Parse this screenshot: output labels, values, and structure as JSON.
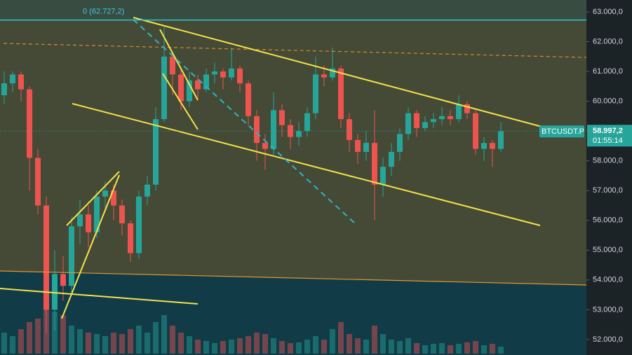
{
  "chart_data": {
    "type": "candlestick",
    "ylim": [
      51480,
      63400
    ],
    "yticks": [
      {
        "value": 52000,
        "label": "52.000,0"
      },
      {
        "value": 53000,
        "label": "53.000,0"
      },
      {
        "value": 54000,
        "label": "54.000,0"
      },
      {
        "value": 55000,
        "label": "55.000,0"
      },
      {
        "value": 56000,
        "label": "56.000,0"
      },
      {
        "value": 57000,
        "label": "57.000,0"
      },
      {
        "value": 58000,
        "label": "58.000,0"
      },
      {
        "value": 59000,
        "label": "59.000,0"
      },
      {
        "value": 60000,
        "label": "60.000,0"
      },
      {
        "value": 61000,
        "label": "61.000,0"
      },
      {
        "value": 62000,
        "label": "62.000,0"
      },
      {
        "value": 63000,
        "label": "63.000,0"
      }
    ],
    "symbol": "BTCUSDT.P",
    "last_price": {
      "value": 58997.2,
      "label": "58.997,2"
    },
    "countdown": "01:55:14",
    "fib_level": {
      "value": 62727.2,
      "label": "0 (62.727,2)"
    },
    "up_color": "#26a69a",
    "down_color": "#ef5350",
    "open": [
      60200,
      60600,
      60900,
      60400,
      58100,
      56500,
      53000,
      54200,
      53800,
      55800,
      56200,
      55600,
      56800,
      57000,
      56500,
      55900,
      54900,
      56800,
      57200,
      59400,
      61500,
      60900,
      60000,
      60700,
      60400,
      60900,
      61000,
      60800,
      61100,
      60600,
      59500,
      58600,
      58400,
      59700,
      59200,
      58800,
      59000,
      59600,
      60900,
      60800,
      61100,
      59400,
      58700,
      58300,
      58600,
      57200,
      57800,
      58300,
      58900,
      59600,
      59100,
      59300,
      59400,
      59500,
      59400,
      59900,
      59600,
      58400,
      58600,
      58400
    ],
    "high": [
      61000,
      61000,
      61000,
      60500,
      58400,
      56800,
      55000,
      54800,
      56100,
      56700,
      56500,
      57000,
      57300,
      57200,
      56700,
      56000,
      57000,
      57500,
      59800,
      62500,
      61600,
      61100,
      61000,
      60900,
      61100,
      61300,
      61100,
      61800,
      61200,
      60700,
      59700,
      58900,
      60300,
      59900,
      59400,
      59300,
      59800,
      61500,
      61200,
      61800,
      61200,
      59600,
      58900,
      59000,
      59700,
      58100,
      58600,
      59100,
      59800,
      59700,
      59500,
      59600,
      59800,
      59700,
      60200,
      60000,
      59700,
      58800,
      58700,
      59300
    ],
    "low": [
      59900,
      60300,
      60000,
      57000,
      56200,
      52200,
      52300,
      53300,
      53600,
      55200,
      55100,
      55400,
      56400,
      56000,
      55500,
      54600,
      54700,
      56500,
      57000,
      59300,
      60200,
      59700,
      59800,
      60100,
      60300,
      60600,
      60400,
      60700,
      60300,
      59200,
      58000,
      57700,
      58200,
      58800,
      58400,
      58500,
      58800,
      59400,
      60500,
      60700,
      59100,
      58300,
      57900,
      58000,
      56000,
      56800,
      57500,
      58000,
      58700,
      58800,
      59000,
      59100,
      59200,
      59200,
      59300,
      59400,
      58200,
      58000,
      57800,
      58300
    ],
    "close": [
      60600,
      60900,
      60400,
      58100,
      56500,
      53000,
      54200,
      53800,
      55800,
      56200,
      55600,
      56800,
      57000,
      56500,
      55900,
      54900,
      56800,
      57200,
      59400,
      61500,
      60900,
      60000,
      60700,
      60400,
      60900,
      61000,
      60800,
      61100,
      60600,
      59500,
      58600,
      58400,
      59700,
      59200,
      58800,
      59000,
      59600,
      60900,
      60800,
      61100,
      59400,
      58700,
      58300,
      58600,
      57200,
      57800,
      58300,
      58900,
      59600,
      59100,
      59300,
      59400,
      59500,
      59400,
      59900,
      59600,
      58400,
      58600,
      58400,
      58997.2
    ],
    "volume": [
      30,
      25,
      35,
      45,
      50,
      70,
      60,
      55,
      40,
      35,
      30,
      28,
      25,
      30,
      28,
      35,
      40,
      30,
      45,
      55,
      40,
      30,
      25,
      20,
      18,
      15,
      18,
      20,
      22,
      25,
      30,
      28,
      22,
      18,
      15,
      16,
      20,
      25,
      20,
      35,
      45,
      28,
      22,
      20,
      40,
      28,
      20,
      18,
      22,
      15,
      12,
      14,
      15,
      12,
      14,
      16,
      18,
      12,
      14,
      10
    ]
  }
}
